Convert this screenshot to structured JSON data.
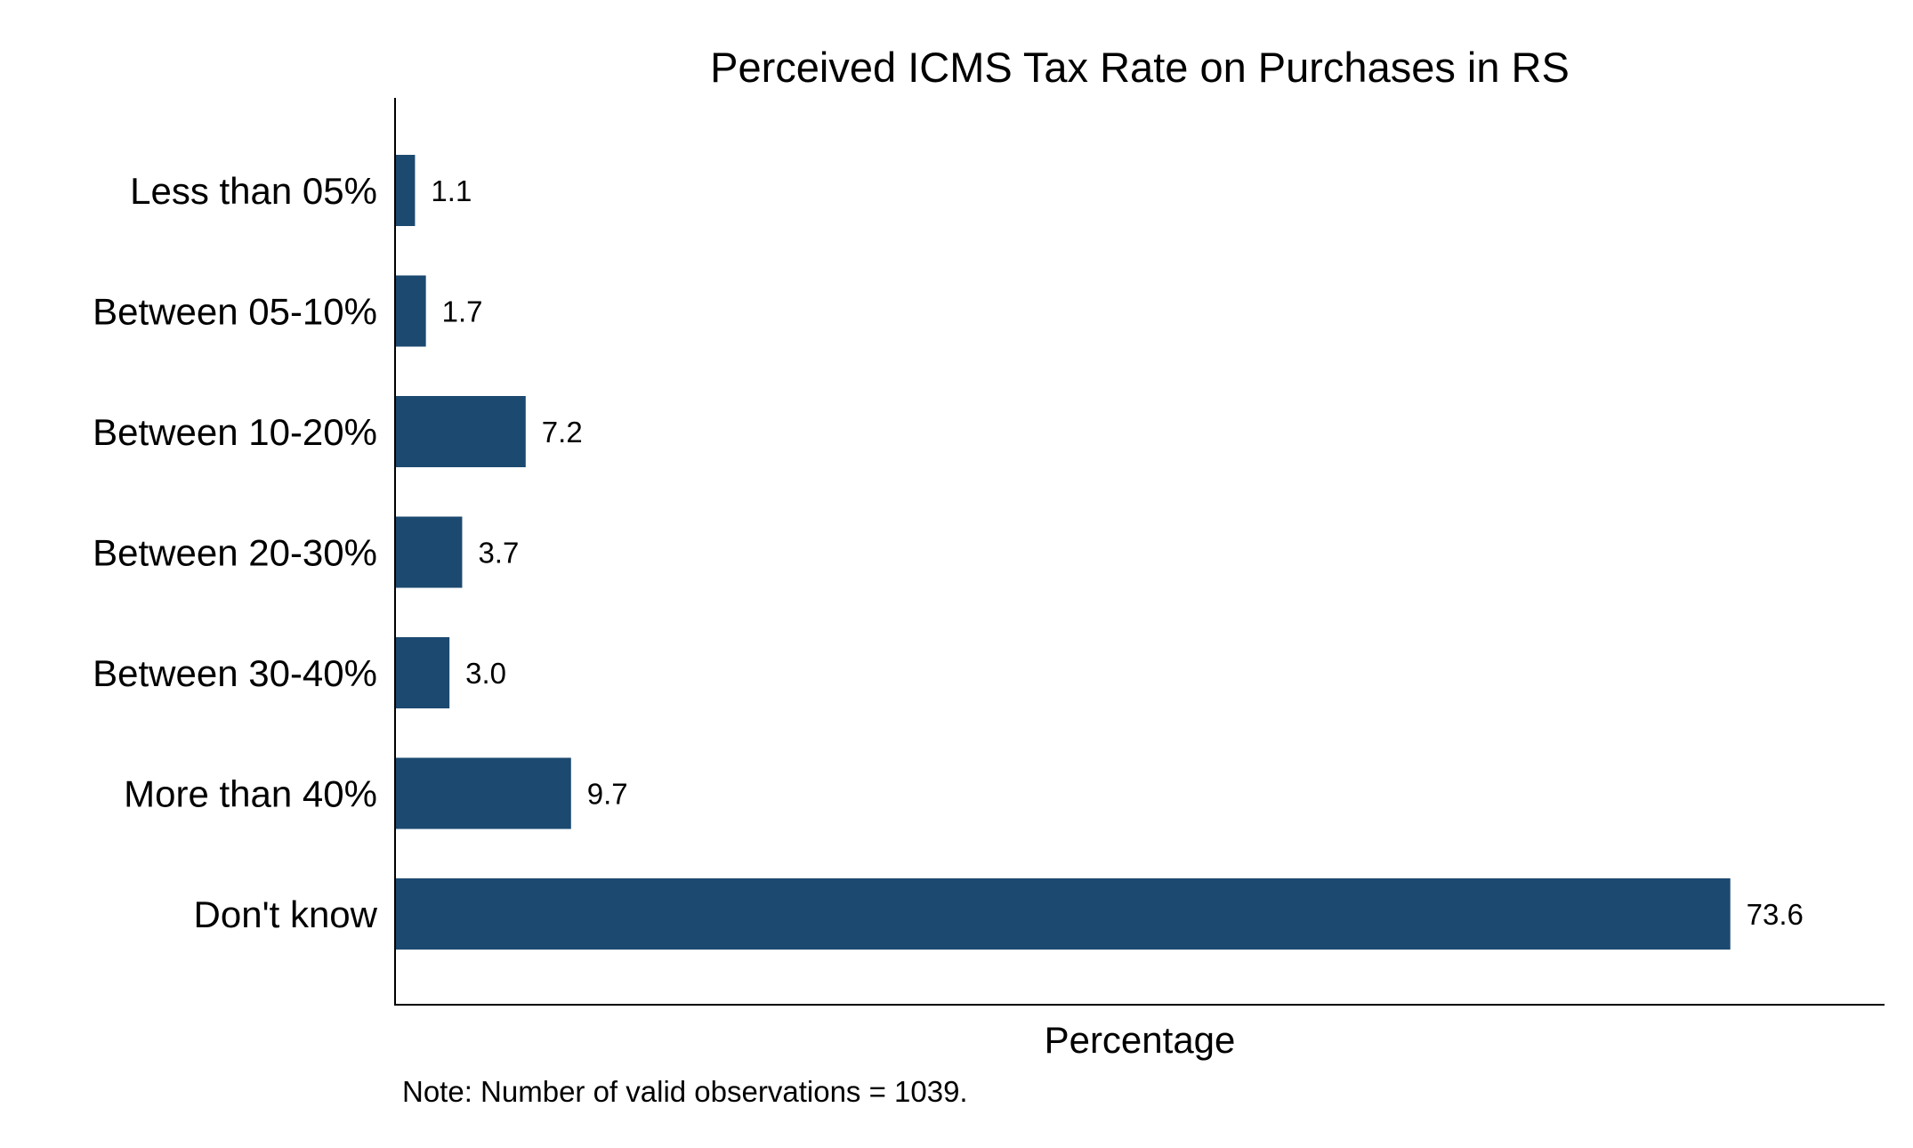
{
  "chart_data": {
    "type": "bar",
    "orientation": "horizontal",
    "title": "Perceived ICMS Tax Rate on Purchases in RS",
    "xlabel": "Percentage",
    "ylabel": "",
    "categories": [
      "Less than 05%",
      "Between 05-10%",
      "Between 10-20%",
      "Between 20-30%",
      "Between 30-40%",
      "More than 40%",
      "Don't know"
    ],
    "values": [
      1.1,
      1.7,
      7.2,
      3.7,
      3.0,
      9.7,
      73.6
    ],
    "value_labels": [
      "1.1",
      "1.7",
      "7.2",
      "3.7",
      "3.0",
      "9.7",
      "73.6"
    ],
    "xlim": [
      0,
      82.1
    ],
    "grid": false,
    "legend": "none",
    "bar_color": "#1c4970",
    "note": "Note: Number of valid observations = 1039."
  }
}
